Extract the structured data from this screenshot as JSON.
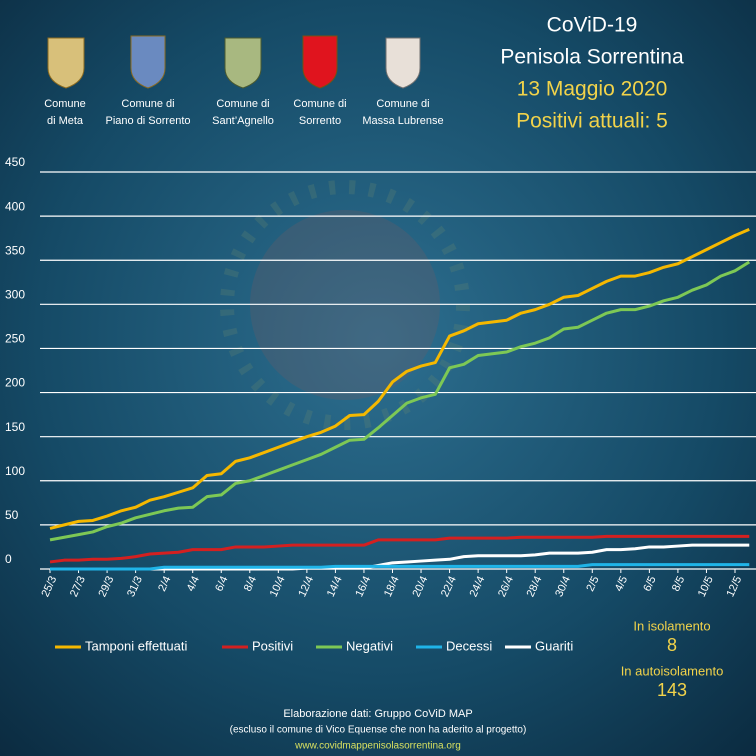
{
  "chart_data": {
    "type": "line",
    "header": {
      "title": "CoViD-19",
      "subtitle": "Penisola Sorrentina",
      "date": "13 Maggio 2020",
      "summary": "Positivi attuali:  5"
    },
    "municipalities": [
      [
        "Comune",
        "di Meta"
      ],
      [
        "Comune di",
        "Piano di Sorrento"
      ],
      [
        "Comune di",
        "Sant’Agnello"
      ],
      [
        "Comune di",
        "Sorrento"
      ],
      [
        "Comune di",
        "Massa Lubrense"
      ]
    ],
    "categories": [
      "25/3",
      null,
      "27/3",
      null,
      "29/3",
      null,
      "31/3",
      null,
      "2/4",
      null,
      "4/4",
      null,
      "6/4",
      null,
      "8/4",
      null,
      "10/4",
      null,
      "12/4",
      null,
      "14/4",
      null,
      "16/4",
      null,
      "18/4",
      null,
      "20/4",
      null,
      "22/4",
      null,
      "24/4",
      null,
      "26/4",
      null,
      "28/4",
      null,
      "30/4",
      null,
      "2/5",
      null,
      "4/5",
      null,
      "6/5",
      null,
      "8/5",
      null,
      "10/5",
      null,
      "12/5",
      null
    ],
    "series": [
      {
        "name": "Tamponi effettuati",
        "color": "#f5b800",
        "values": [
          46,
          50,
          54,
          55,
          60,
          66,
          70,
          78,
          82,
          87,
          92,
          106,
          108,
          122,
          126,
          132,
          138,
          144,
          150,
          155,
          162,
          174,
          175,
          190,
          212,
          224,
          230,
          234,
          264,
          270,
          278,
          280,
          282,
          290,
          294,
          300,
          308,
          310,
          318,
          326,
          332,
          332,
          336,
          342,
          346,
          354,
          362,
          370,
          378,
          385
        ]
      },
      {
        "name": "Positivi",
        "color": "#d42020",
        "values": [
          8,
          10,
          10,
          11,
          11,
          12,
          14,
          17,
          18,
          19,
          22,
          22,
          22,
          25,
          25,
          25,
          26,
          27,
          27,
          27,
          27,
          27,
          27,
          33,
          33,
          33,
          33,
          33,
          35,
          35,
          35,
          35,
          35,
          36,
          36,
          36,
          36,
          36,
          36,
          37,
          37,
          37,
          37,
          37,
          37,
          37,
          37,
          37,
          37,
          37
        ]
      },
      {
        "name": "Negativi",
        "color": "#7dc855",
        "values": [
          33,
          36,
          39,
          42,
          48,
          52,
          58,
          62,
          66,
          69,
          70,
          82,
          84,
          97,
          100,
          106,
          112,
          118,
          124,
          130,
          138,
          146,
          147,
          160,
          174,
          188,
          194,
          198,
          228,
          232,
          242,
          244,
          246,
          252,
          256,
          262,
          272,
          274,
          282,
          290,
          294,
          294,
          298,
          304,
          308,
          316,
          322,
          332,
          338,
          348
        ]
      },
      {
        "name": "Decessi",
        "color": "#1fb4e8",
        "values": [
          0,
          0,
          0,
          0,
          0,
          0,
          0,
          0,
          2,
          2,
          2,
          2,
          2,
          2,
          2,
          2,
          2,
          2,
          2,
          2,
          3,
          3,
          3,
          3,
          3,
          3,
          3,
          3,
          3,
          3,
          3,
          3,
          3,
          3,
          3,
          3,
          3,
          3,
          5,
          5,
          5,
          5,
          5,
          5,
          5,
          5,
          5,
          5,
          5,
          5
        ]
      },
      {
        "name": "Guariti",
        "color": "#ffffff",
        "values": [
          0,
          0,
          0,
          0,
          0,
          0,
          0,
          0,
          0,
          0,
          0,
          0,
          0,
          0,
          0,
          0,
          0,
          0,
          1,
          1,
          1,
          1,
          1,
          4,
          7,
          8,
          9,
          10,
          11,
          14,
          15,
          15,
          15,
          15,
          16,
          18,
          18,
          18,
          19,
          22,
          22,
          23,
          25,
          25,
          26,
          27,
          27,
          27,
          27,
          27
        ]
      }
    ],
    "ylim": [
      0,
      450
    ],
    "yticks": [
      0,
      50,
      100,
      150,
      200,
      250,
      300,
      350,
      400,
      450
    ],
    "grid": true,
    "stats": [
      {
        "label": "In isolamento",
        "value": 8
      },
      {
        "label": "In autoisolamento",
        "value": 143
      }
    ],
    "footer": [
      "Elaborazione  dati:  Gruppo CoViD MAP",
      "(escluso il comune  di Vico  Equense che non  ha aderito al progetto)",
      "www.covidmappenisolasorrentina.org"
    ]
  }
}
